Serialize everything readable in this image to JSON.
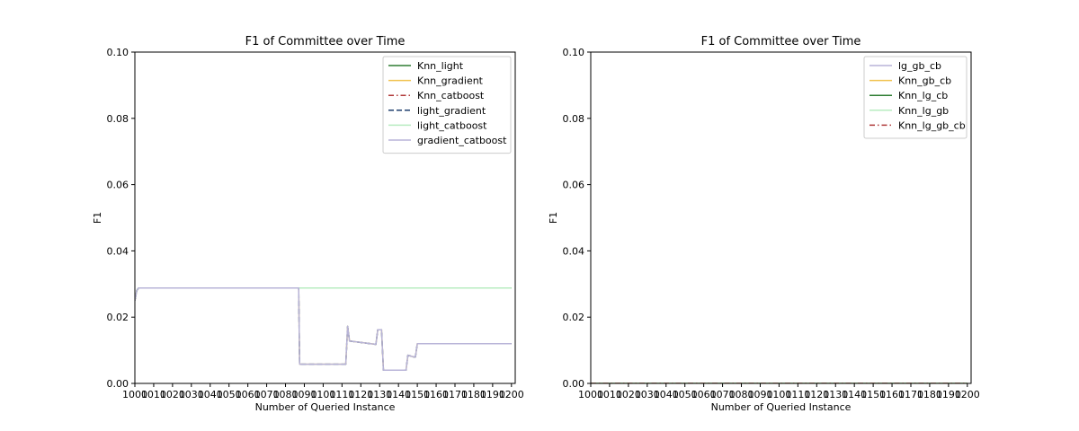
{
  "chart_data": [
    {
      "type": "line",
      "title": "F1 of Committee over Time",
      "xlabel": "Number of Queried Instance",
      "ylabel": "F1",
      "xlim": [
        1000,
        1202
      ],
      "ylim": [
        0,
        0.1
      ],
      "xticks": [
        1000,
        1010,
        1020,
        1030,
        1040,
        1050,
        1060,
        1070,
        1080,
        1090,
        1100,
        1110,
        1120,
        1130,
        1140,
        1150,
        1160,
        1170,
        1180,
        1190,
        1200
      ],
      "yticks": [
        0.0,
        0.02,
        0.04,
        0.06,
        0.08,
        0.1
      ],
      "ytick_labels": [
        "0.00",
        "0.02",
        "0.04",
        "0.06",
        "0.08",
        "0.10"
      ],
      "grid": false,
      "legend_position": "top-right",
      "series": [
        {
          "name": "Knn_light",
          "color": "#2e7d32",
          "dash": "solid",
          "x": [
            1000,
            1001,
            1002,
            1200
          ],
          "y": [
            0.025,
            0.028,
            0.0288,
            0.0288
          ]
        },
        {
          "name": "Knn_gradient",
          "color": "#f0c24f",
          "dash": "solid",
          "x": [
            1000,
            1001,
            1002,
            1087,
            1087.5,
            1112,
            1113,
            1114,
            1128,
            1129,
            1131,
            1132,
            1144,
            1145,
            1148,
            1149,
            1150,
            1200
          ],
          "y": [
            0.025,
            0.028,
            0.0288,
            0.0288,
            0.0058,
            0.0058,
            0.0172,
            0.0128,
            0.0118,
            0.0162,
            0.0162,
            0.004,
            0.004,
            0.0085,
            0.008,
            0.008,
            0.012,
            0.012
          ]
        },
        {
          "name": "Knn_catboost",
          "color": "#b03a3a",
          "dash": "dashdot",
          "x": [
            1000,
            1001,
            1002,
            1200
          ],
          "y": [
            0.025,
            0.028,
            0.0288,
            0.0288
          ]
        },
        {
          "name": "light_gradient",
          "color": "#1f3f6e",
          "dash": "dashed",
          "x": [
            1000,
            1001,
            1002,
            1087,
            1087.5,
            1112,
            1113,
            1114,
            1128,
            1129,
            1131,
            1132,
            1144,
            1145,
            1148,
            1149,
            1150,
            1200
          ],
          "y": [
            0.025,
            0.028,
            0.0288,
            0.0288,
            0.0058,
            0.0058,
            0.0172,
            0.0128,
            0.0118,
            0.0162,
            0.0162,
            0.004,
            0.004,
            0.0085,
            0.008,
            0.008,
            0.012,
            0.012
          ]
        },
        {
          "name": "light_catboost",
          "color": "#b8ecc0",
          "dash": "solid",
          "x": [
            1000,
            1001,
            1002,
            1200
          ],
          "y": [
            0.025,
            0.028,
            0.0288,
            0.0288
          ]
        },
        {
          "name": "gradient_catboost",
          "color": "#b8b4d8",
          "dash": "solid",
          "x": [
            1000,
            1001,
            1002,
            1087,
            1087.5,
            1112,
            1113,
            1114,
            1128,
            1129,
            1131,
            1132,
            1144,
            1145,
            1148,
            1149,
            1150,
            1200
          ],
          "y": [
            0.025,
            0.028,
            0.0288,
            0.0288,
            0.0058,
            0.0058,
            0.0172,
            0.0128,
            0.0118,
            0.0162,
            0.0162,
            0.004,
            0.004,
            0.0085,
            0.008,
            0.008,
            0.012,
            0.012
          ]
        }
      ]
    },
    {
      "type": "line",
      "title": "F1 of Committee over Time",
      "xlabel": "Number of Queried Instance",
      "ylabel": "F1",
      "xlim": [
        1000,
        1202
      ],
      "ylim": [
        0,
        0.1
      ],
      "xticks": [
        1000,
        1010,
        1020,
        1030,
        1040,
        1050,
        1060,
        1070,
        1080,
        1090,
        1100,
        1110,
        1120,
        1130,
        1140,
        1150,
        1160,
        1170,
        1180,
        1190,
        1200
      ],
      "yticks": [
        0.0,
        0.02,
        0.04,
        0.06,
        0.08,
        0.1
      ],
      "ytick_labels": [
        "0.00",
        "0.02",
        "0.04",
        "0.06",
        "0.08",
        "0.10"
      ],
      "grid": false,
      "legend_position": "top-right",
      "series": [
        {
          "name": "lg_gb_cb",
          "color": "#b8b4d8",
          "dash": "solid",
          "x": [
            1000,
            1200
          ],
          "y": [
            0,
            0
          ]
        },
        {
          "name": "Knn_gb_cb",
          "color": "#f0c24f",
          "dash": "solid",
          "x": [
            1000,
            1200
          ],
          "y": [
            0,
            0
          ]
        },
        {
          "name": "Knn_lg_cb",
          "color": "#2e7d32",
          "dash": "solid",
          "x": [
            1000,
            1200
          ],
          "y": [
            0,
            0
          ]
        },
        {
          "name": "Knn_lg_gb",
          "color": "#b8ecc0",
          "dash": "solid",
          "x": [
            1000,
            1200
          ],
          "y": [
            0,
            0
          ]
        },
        {
          "name": "Knn_lg_gb_cb",
          "color": "#b03a3a",
          "dash": "dashdot",
          "x": [
            1000,
            1200
          ],
          "y": [
            0,
            0
          ]
        }
      ]
    }
  ]
}
